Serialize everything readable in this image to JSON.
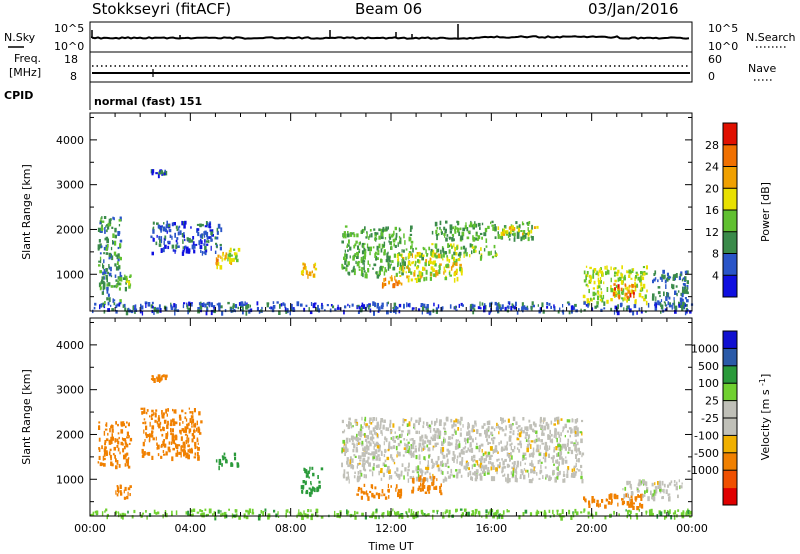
{
  "header": {
    "station": "Stokkseyri (fitACF)",
    "beam": "Beam 06",
    "date": "03/Jan/2016"
  },
  "noise_panel": {
    "left_label": "N.Sky",
    "right_label": "N.Search",
    "left_ticks": [
      "10^5",
      "10^0"
    ],
    "right_ticks": [
      "10^5",
      "10^0"
    ]
  },
  "freq_panel": {
    "left_label_line1": "Freq.",
    "left_label_line2": "[MHz]",
    "right_label": "Nave",
    "left_ticks": [
      "18",
      "8"
    ],
    "right_ticks": [
      "60",
      "0"
    ]
  },
  "cpid_panel": {
    "label": "CPID",
    "text": "normal (fast) 151"
  },
  "colors": {
    "power_scale": [
      "#1010e0",
      "#2a55c8",
      "#3a8a4a",
      "#60c030",
      "#e8e000",
      "#f0a000",
      "#f07000",
      "#e01000"
    ],
    "velocity_scale": [
      "#e00000",
      "#f05000",
      "#f08000",
      "#f0b000",
      "#c0c0b8",
      "#c0c0b8",
      "#70d030",
      "#2a9a3a",
      "#2a5aa8",
      "#1010d0"
    ]
  },
  "chart_data": [
    {
      "type": "heatmap",
      "panel": "power",
      "ylabel": "Slant Range [km]",
      "xlim": [
        "00:00",
        "24:00"
      ],
      "ylim": [
        180,
        4600
      ],
      "x_ticks": [
        "00:00",
        "04:00",
        "08:00",
        "12:00",
        "16:00",
        "20:00",
        "00:00"
      ],
      "y_ticks": [
        1000,
        2000,
        3000,
        4000
      ],
      "colorbar": {
        "label": "Power [dB]",
        "ticks": [
          4,
          8,
          12,
          16,
          20,
          24,
          28
        ],
        "range": [
          0,
          32
        ]
      },
      "regions": [
        {
          "t0": 0.3,
          "t1": 1.2,
          "r0": 300,
          "r1": 2300,
          "level": 10
        },
        {
          "t0": 1.0,
          "t1": 1.6,
          "r0": 700,
          "r1": 1000,
          "level": 14
        },
        {
          "t0": 2.4,
          "t1": 3.0,
          "r0": 3250,
          "r1": 3350,
          "level": 6
        },
        {
          "t0": 2.4,
          "t1": 5.2,
          "r0": 1500,
          "r1": 2200,
          "level": 6
        },
        {
          "t0": 5.0,
          "t1": 5.6,
          "r0": 1200,
          "r1": 1500,
          "level": 22
        },
        {
          "t0": 5.4,
          "t1": 5.9,
          "r0": 1300,
          "r1": 1600,
          "level": 16
        },
        {
          "t0": 8.4,
          "t1": 9.0,
          "r0": 1000,
          "r1": 1300,
          "level": 20
        },
        {
          "t0": 10.0,
          "t1": 12.8,
          "r0": 1000,
          "r1": 2100,
          "level": 12
        },
        {
          "t0": 11.6,
          "t1": 12.4,
          "r0": 700,
          "r1": 1000,
          "level": 24
        },
        {
          "t0": 12.2,
          "t1": 14.8,
          "r0": 900,
          "r1": 1500,
          "level": 18
        },
        {
          "t0": 12.8,
          "t1": 16.2,
          "r0": 1400,
          "r1": 1700,
          "level": 14
        },
        {
          "t0": 13.6,
          "t1": 17.6,
          "r0": 1800,
          "r1": 2200,
          "level": 12
        },
        {
          "t0": 16.2,
          "t1": 17.8,
          "r0": 1850,
          "r1": 2100,
          "level": 18
        },
        {
          "t0": 19.6,
          "t1": 22.2,
          "r0": 400,
          "r1": 1200,
          "level": 16
        },
        {
          "t0": 20.8,
          "t1": 21.8,
          "r0": 500,
          "r1": 800,
          "level": 26
        },
        {
          "t0": 22.4,
          "t1": 23.8,
          "r0": 300,
          "r1": 1100,
          "level": 8
        },
        {
          "t0": 0.0,
          "t1": 24.0,
          "r0": 180,
          "r1": 400,
          "level": 6
        }
      ]
    },
    {
      "type": "heatmap",
      "panel": "velocity",
      "ylabel": "Slant Range [km]",
      "xlabel": "Time UT",
      "xlim": [
        "00:00",
        "24:00"
      ],
      "ylim": [
        180,
        4600
      ],
      "x_ticks": [
        "00:00",
        "04:00",
        "08:00",
        "12:00",
        "16:00",
        "20:00",
        "00:00"
      ],
      "y_ticks": [
        1000,
        2000,
        3000,
        4000
      ],
      "colorbar": {
        "label": "Velocity [m s^-1]",
        "ticks": [
          1000,
          500,
          100,
          25,
          -25,
          -100,
          -500,
          -1000
        ]
      },
      "regions": [
        {
          "t0": 0.3,
          "t1": 1.6,
          "r0": 1300,
          "r1": 2300,
          "level": -200
        },
        {
          "t0": 1.0,
          "t1": 1.6,
          "r0": 600,
          "r1": 900,
          "level": -300
        },
        {
          "t0": 2.0,
          "t1": 4.4,
          "r0": 1500,
          "r1": 2600,
          "level": -300
        },
        {
          "t0": 2.4,
          "t1": 3.0,
          "r0": 3250,
          "r1": 3350,
          "level": -150
        },
        {
          "t0": 5.0,
          "t1": 5.9,
          "r0": 1300,
          "r1": 1600,
          "level": 300
        },
        {
          "t0": 8.4,
          "t1": 9.2,
          "r0": 700,
          "r1": 1300,
          "level": 150
        },
        {
          "t0": 10.0,
          "t1": 19.6,
          "r0": 1000,
          "r1": 2400,
          "level": 0
        },
        {
          "t0": 10.6,
          "t1": 12.4,
          "r0": 600,
          "r1": 900,
          "level": -150
        },
        {
          "t0": 12.8,
          "t1": 14.0,
          "r0": 700,
          "r1": 1100,
          "level": -400
        },
        {
          "t0": 19.6,
          "t1": 22.0,
          "r0": 400,
          "r1": 700,
          "level": -300
        },
        {
          "t0": 21.2,
          "t1": 23.6,
          "r0": 600,
          "r1": 1000,
          "level": 0
        },
        {
          "t0": 0.0,
          "t1": 24.0,
          "r0": 180,
          "r1": 350,
          "level": 80
        }
      ]
    }
  ]
}
